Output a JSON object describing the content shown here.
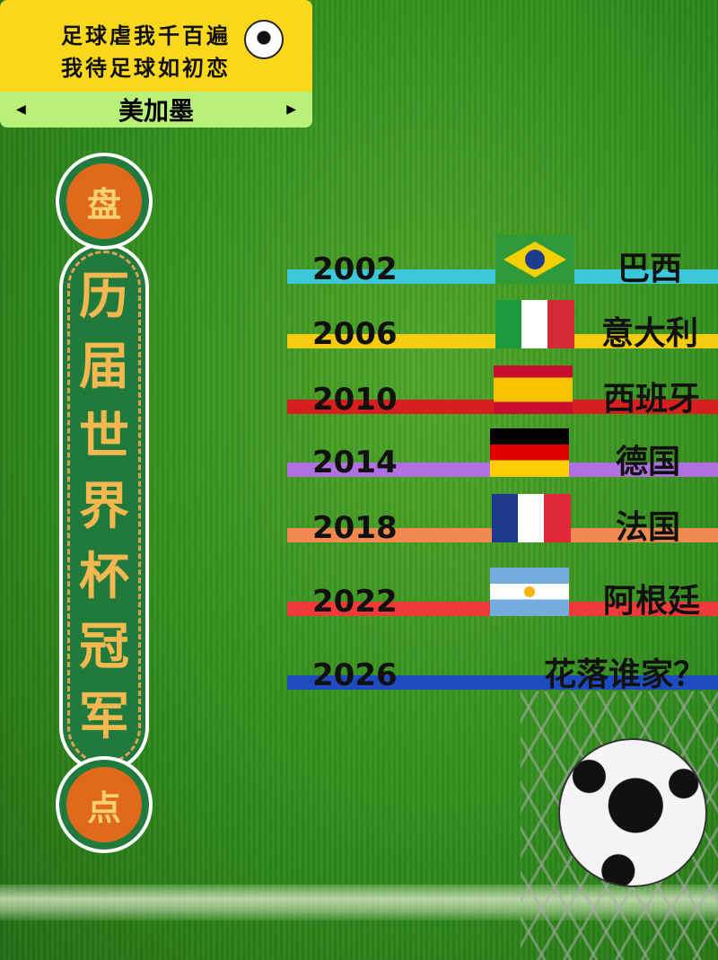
{
  "banner": {
    "line1": "足球虐我千百遍",
    "line2": "我待足球如初恋",
    "host": "美加墨",
    "prev": "◀",
    "next": "▶"
  },
  "pill": {
    "top": "盘",
    "chars": [
      "历",
      "届",
      "世",
      "界",
      "杯",
      "冠",
      "军"
    ],
    "bottom": "点"
  },
  "champions": [
    {
      "year": "2002",
      "country": "巴西",
      "flag": "brazil",
      "color": "#3cc8d8"
    },
    {
      "year": "2006",
      "country": "意大利",
      "flag": "italy",
      "color": "#f5cc10"
    },
    {
      "year": "2010",
      "country": "西班牙",
      "flag": "spain",
      "color": "#d81e1e"
    },
    {
      "year": "2014",
      "country": "德国",
      "flag": "germany",
      "color": "#b070e0"
    },
    {
      "year": "2018",
      "country": "法国",
      "flag": "france",
      "color": "#f08a50"
    },
    {
      "year": "2022",
      "country": "阿根廷",
      "flag": "argentina",
      "color": "#f03a3a"
    },
    {
      "year": "2026",
      "country": "花落谁家？",
      "flag": "",
      "color": "#1e4cc0"
    }
  ]
}
